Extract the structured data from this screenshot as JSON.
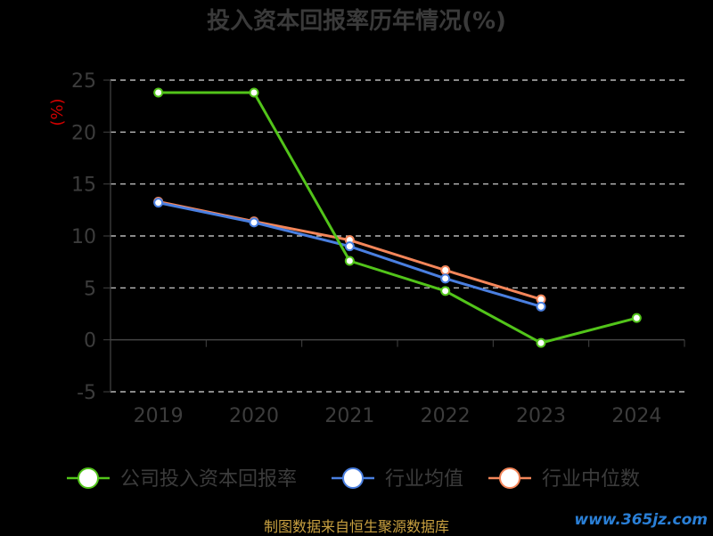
{
  "chart_data": {
    "type": "line",
    "title": "投入资本回报率历年情况(%)",
    "ylabel": "(%)",
    "categories": [
      "2019",
      "2020",
      "2021",
      "2022",
      "2023",
      "2024"
    ],
    "yticks": [
      "25",
      "20",
      "15",
      "10",
      "5",
      "0",
      "-5"
    ],
    "ylim": [
      -5,
      25
    ],
    "grid": true,
    "legend_position": "bottom",
    "series": [
      {
        "name": "公司投入资本回报率",
        "color": "#52c41a",
        "values": [
          23.8,
          23.8,
          7.6,
          4.7,
          -0.3,
          2.1
        ]
      },
      {
        "name": "行业均值",
        "color": "#4a7fe0",
        "values": [
          13.2,
          11.3,
          9.0,
          5.9,
          3.2,
          null
        ]
      },
      {
        "name": "行业中位数",
        "color": "#f4865a",
        "values": [
          13.3,
          11.4,
          9.6,
          6.7,
          3.9,
          null
        ]
      }
    ]
  },
  "footer": "制图数据来自恒生聚源数据库",
  "watermark": "www.365jz.com"
}
